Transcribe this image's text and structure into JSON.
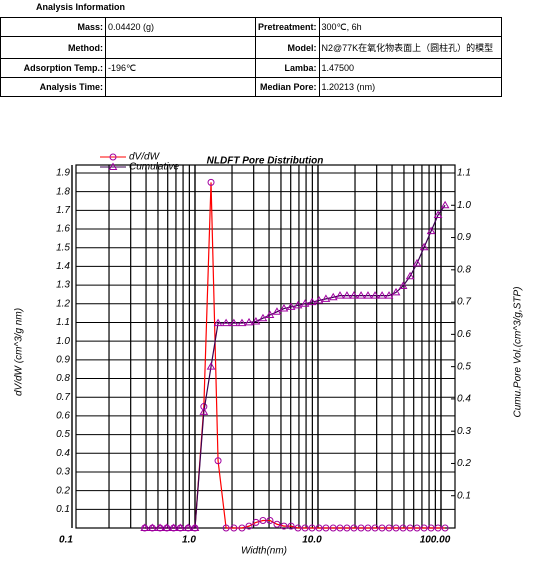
{
  "header": {
    "title": "Analysis Information"
  },
  "table": {
    "rows": [
      [
        {
          "label": "Mass:",
          "value": "0.04420 (g)"
        },
        {
          "label": "Pretreatment:",
          "value": "300℃, 6h"
        }
      ],
      [
        {
          "label": "Method:"
        },
        {
          "label": "Model:",
          "value": "N2@77K在氧化物表面上（圆柱孔）的模型"
        }
      ],
      [
        {
          "label": "Adsorption Temp.:",
          "value": "-196℃"
        },
        {
          "label": "Lamba:",
          "value": "1.47500"
        }
      ],
      [
        {
          "label": "Analysis Time:"
        },
        {
          "label": "Median Pore:",
          "value": "1.20213 (nm)"
        }
      ]
    ]
  },
  "chart_data": {
    "type": "line",
    "title": "NLDFT Pore Distribution",
    "x_label": "Width(nm)",
    "y_label": "dV/dW (cm^3/g nm)",
    "y2_label": "Cumu.Pore Vol.(cm^3/g,STP)",
    "x_scale": "log",
    "grid": true,
    "legend": "top-left",
    "xlim": [
      0.1,
      130
    ],
    "xticks": [
      0.1,
      {
        "value": 1,
        "label": "1.0"
      },
      {
        "value": 10,
        "label": "10.0"
      },
      {
        "value": 100,
        "label": "100.00"
      }
    ],
    "minor_xticks": [
      0.2,
      0.3,
      0.4,
      0.5,
      0.6,
      0.7,
      0.8,
      0.9,
      2,
      3,
      4,
      5,
      6,
      7,
      8,
      9,
      20,
      30,
      40,
      50,
      60,
      70,
      80,
      90
    ],
    "ylim": [
      0,
      1.9
    ],
    "yticks": [
      0.1,
      0.2,
      0.3,
      0.4,
      0.5,
      0.6,
      0.7,
      0.8,
      0.9,
      {
        "value": 1,
        "label": "1.0"
      },
      1.1,
      1.2,
      1.3,
      1.4,
      1.5,
      1.6,
      1.7,
      1.8,
      1.9
    ],
    "y2lim": [
      0,
      1.1
    ],
    "y2ticks": [
      0.1,
      0.2,
      0.3,
      0.4,
      0.5,
      0.6,
      0.7,
      0.8,
      0.9,
      {
        "value": 1,
        "label": "1.0"
      },
      1.1
    ],
    "x": [
      0.39,
      0.45,
      0.52,
      0.59,
      0.67,
      0.76,
      0.88,
      1.0,
      1.18,
      1.35,
      1.54,
      1.79,
      2.07,
      2.41,
      2.75,
      3.13,
      3.57,
      4.07,
      4.64,
      5.29,
      6.04,
      6.88,
      7.85,
      8.95,
      10.2,
      11.6,
      13.3,
      15.1,
      17.2,
      19.6,
      22.4,
      25.5,
      29.1,
      33.2,
      37.8,
      43.1,
      49.2,
      56.1,
      63.9,
      72.9,
      83.1,
      94.7,
      108
    ],
    "series": [
      {
        "name": "dV/dW",
        "color": "#ff0000",
        "marker_color": "#a000a0",
        "marker": "circle",
        "values": [
          0,
          0,
          0,
          0,
          0,
          0,
          0,
          0,
          0.65,
          1.85,
          0.36,
          0,
          0,
          0,
          0.01,
          0.03,
          0.04,
          0.04,
          0.02,
          0.01,
          0.01,
          0,
          0,
          0,
          0,
          0,
          0,
          0,
          0,
          0,
          0,
          0,
          0,
          0,
          0,
          0,
          0,
          0,
          0,
          0,
          0,
          0,
          0
        ]
      },
      {
        "name": "Cumulative",
        "color": "#3a0050",
        "marker_color": "#a000a0",
        "marker": "triangle",
        "axis": "y2",
        "values": [
          0,
          0,
          0,
          0,
          0,
          0,
          0,
          0,
          0.36,
          0.5,
          0.635,
          0.635,
          0.635,
          0.635,
          0.637,
          0.64,
          0.65,
          0.66,
          0.67,
          0.68,
          0.685,
          0.69,
          0.695,
          0.7,
          0.705,
          0.71,
          0.715,
          0.72,
          0.72,
          0.72,
          0.72,
          0.72,
          0.72,
          0.72,
          0.72,
          0.73,
          0.75,
          0.78,
          0.82,
          0.87,
          0.92,
          0.97,
          1.0
        ]
      }
    ]
  }
}
